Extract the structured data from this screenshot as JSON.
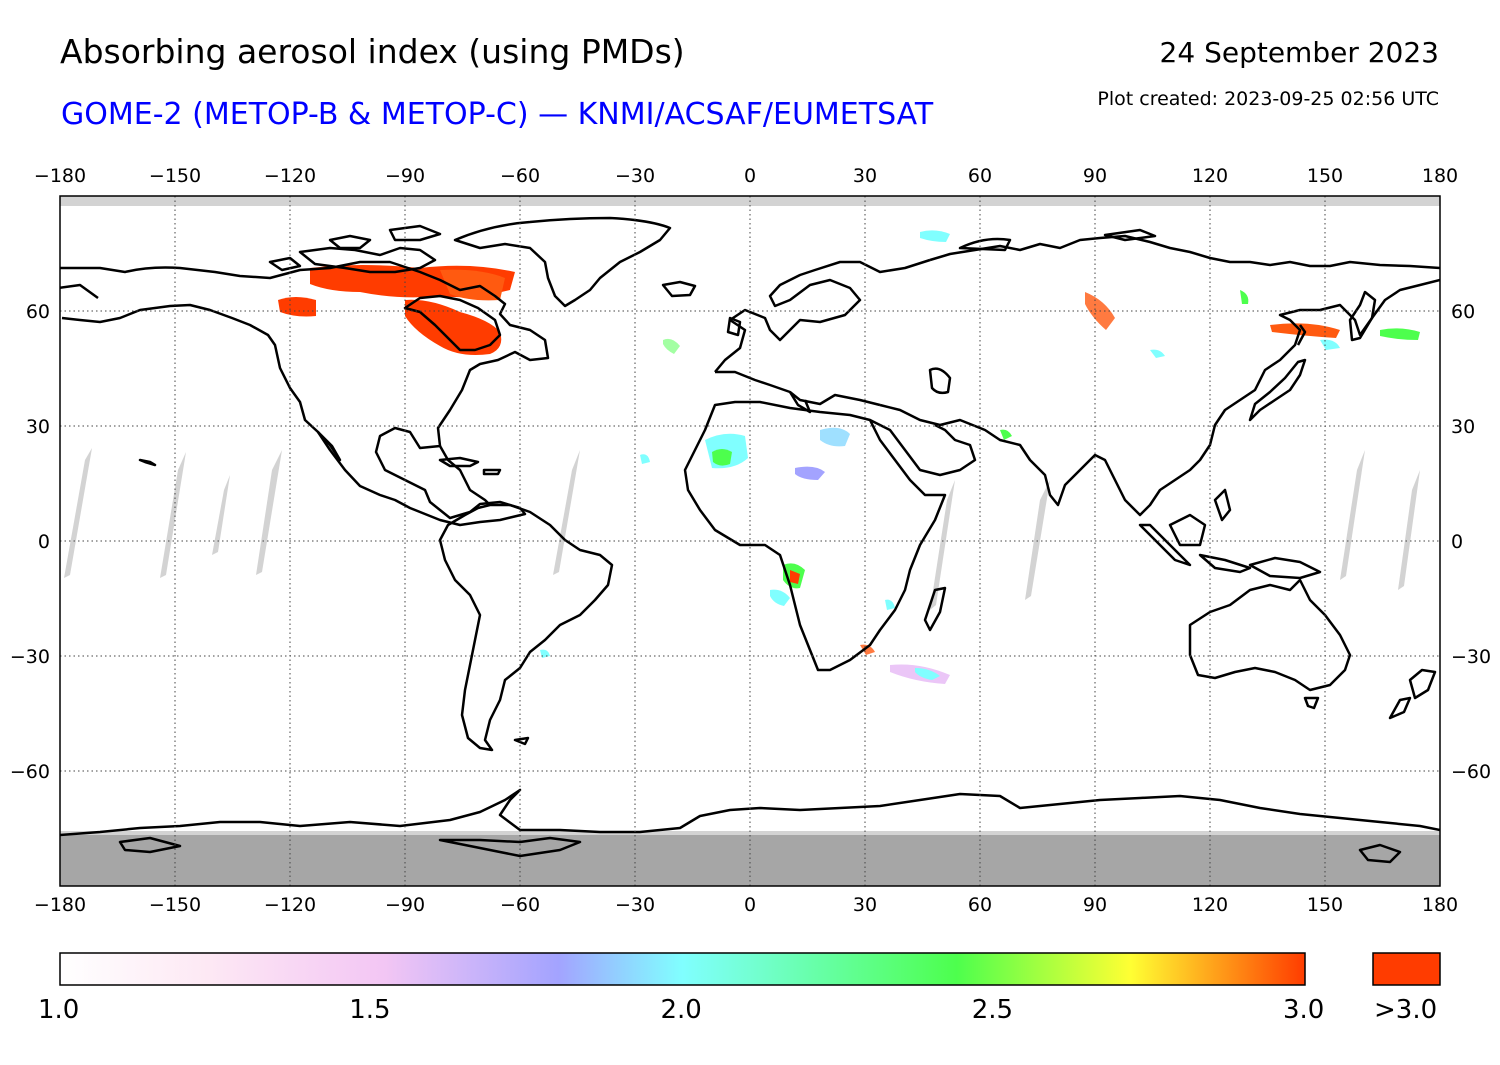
{
  "header": {
    "title": "Absorbing aerosol index (using PMDs)",
    "subtitle": "GOME-2 (METOP-B & METOP-C) — KNMI/ACSAF/EUMETSAT",
    "date": "24 September 2023",
    "created": "Plot created: 2023-09-25 02:56 UTC"
  },
  "colors": {
    "subtitle": "#0000ff",
    "land_outline": "#000000",
    "no_data": "#d3d3d3",
    "polar_night": "#a6a6a6",
    "over_max": "#ff3c00"
  },
  "map": {
    "lon_ticks": [
      "−180",
      "−150",
      "−120",
      "−90",
      "−60",
      "−30",
      "0",
      "30",
      "60",
      "90",
      "120",
      "150",
      "180"
    ],
    "lon_values": [
      -180,
      -150,
      -120,
      -90,
      -60,
      -30,
      0,
      30,
      60,
      90,
      120,
      150,
      180
    ],
    "lat_ticks": [
      "60",
      "30",
      "0",
      "−30",
      "−60"
    ],
    "lat_values": [
      60,
      30,
      0,
      -30,
      -60
    ],
    "lat_range": [
      -90,
      90
    ],
    "lon_range": [
      -180,
      180
    ],
    "grid": "dotted"
  },
  "colorbar": {
    "ticks": [
      "1.0",
      "1.5",
      "2.0",
      "2.5",
      "3.0"
    ],
    "tick_values": [
      1.0,
      1.5,
      2.0,
      2.5,
      3.0
    ],
    "over_label": ">3.0",
    "range": [
      1.0,
      3.0
    ],
    "gradient": [
      "#ffffff",
      "#fbd9f0",
      "#ebc6f7",
      "#a3a3ff",
      "#80ffff",
      "#4dff4d",
      "#ffff33",
      "#ff3c00"
    ]
  }
}
